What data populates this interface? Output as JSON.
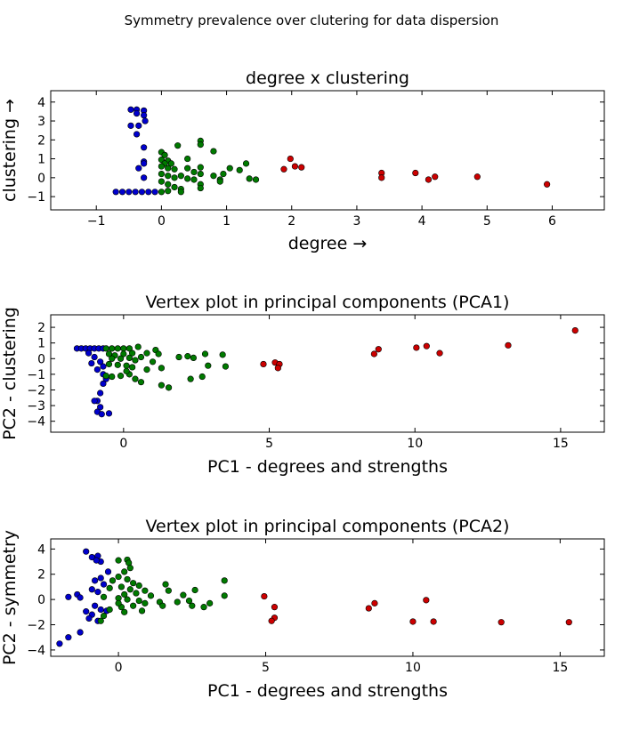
{
  "figure": {
    "suptitle": "Symmetry prevalence over clutering for data dispersion"
  },
  "colors": {
    "cluster_blue": "#0000cc",
    "cluster_green": "#007a00",
    "cluster_red": "#cc0000"
  },
  "chart_data": [
    {
      "type": "scatter",
      "title": "degree x clustering",
      "xlabel": "degree  →",
      "ylabel": "clustering  →",
      "xlim": [
        -1.7,
        6.8
      ],
      "ylim": [
        -1.7,
        4.6
      ],
      "xticks": [
        -1,
        0,
        1,
        2,
        3,
        4,
        5,
        6
      ],
      "yticks": [
        -1,
        0,
        1,
        2,
        3,
        4
      ],
      "series": [
        {
          "color": "blue",
          "points": [
            [
              -0.47,
              3.6
            ],
            [
              -0.38,
              3.6
            ],
            [
              -0.27,
              3.55
            ],
            [
              -0.38,
              3.4
            ],
            [
              -0.27,
              3.3
            ],
            [
              -0.25,
              3.0
            ],
            [
              -0.47,
              2.75
            ],
            [
              -0.35,
              2.75
            ],
            [
              -0.38,
              2.3
            ],
            [
              -0.27,
              1.6
            ],
            [
              -0.27,
              0.85
            ],
            [
              -0.27,
              0.75
            ],
            [
              -0.35,
              0.5
            ],
            [
              -0.27,
              0.0
            ],
            [
              -0.7,
              -0.75
            ],
            [
              -0.6,
              -0.75
            ],
            [
              -0.5,
              -0.75
            ],
            [
              -0.4,
              -0.75
            ],
            [
              -0.3,
              -0.75
            ],
            [
              -0.2,
              -0.75
            ],
            [
              -0.1,
              -0.75
            ]
          ]
        },
        {
          "color": "green",
          "points": [
            [
              0.0,
              1.35
            ],
            [
              0.05,
              1.2
            ],
            [
              0.0,
              0.95
            ],
            [
              0.1,
              0.9
            ],
            [
              0.05,
              0.75
            ],
            [
              0.0,
              0.6
            ],
            [
              0.1,
              0.5
            ],
            [
              0.2,
              0.45
            ],
            [
              0.0,
              0.2
            ],
            [
              0.1,
              0.1
            ],
            [
              0.2,
              0.0
            ],
            [
              0.3,
              0.1
            ],
            [
              0.0,
              -0.2
            ],
            [
              0.1,
              -0.35
            ],
            [
              0.2,
              -0.5
            ],
            [
              0.3,
              -0.6
            ],
            [
              0.0,
              -0.75
            ],
            [
              0.1,
              -0.7
            ],
            [
              0.3,
              -0.75
            ],
            [
              0.25,
              1.7
            ],
            [
              0.4,
              1.0
            ],
            [
              0.4,
              0.5
            ],
            [
              0.5,
              0.3
            ],
            [
              0.4,
              -0.05
            ],
            [
              0.6,
              1.95
            ],
            [
              0.6,
              1.75
            ],
            [
              0.6,
              0.55
            ],
            [
              0.6,
              0.2
            ],
            [
              0.5,
              -0.1
            ],
            [
              0.6,
              -0.35
            ],
            [
              0.6,
              -0.55
            ],
            [
              0.8,
              1.4
            ],
            [
              0.8,
              0.1
            ],
            [
              0.9,
              -0.1
            ],
            [
              0.9,
              -0.2
            ],
            [
              0.95,
              0.2
            ],
            [
              1.05,
              0.5
            ],
            [
              1.3,
              0.75
            ],
            [
              1.2,
              0.4
            ],
            [
              1.35,
              -0.05
            ],
            [
              1.45,
              -0.1
            ],
            [
              0.15,
              0.75
            ]
          ]
        },
        {
          "color": "red",
          "points": [
            [
              1.98,
              1.0
            ],
            [
              2.05,
              0.6
            ],
            [
              1.88,
              0.45
            ],
            [
              2.15,
              0.55
            ],
            [
              3.38,
              0.25
            ],
            [
              3.38,
              0.0
            ],
            [
              3.9,
              0.25
            ],
            [
              4.1,
              -0.1
            ],
            [
              4.2,
              0.05
            ],
            [
              4.85,
              0.05
            ],
            [
              5.92,
              -0.35
            ]
          ]
        }
      ]
    },
    {
      "type": "scatter",
      "title": "Vertex plot in principal components (PCA1)",
      "xlabel": "PC1 - degrees and strengths",
      "ylabel": "PC2 - clustering",
      "xlim": [
        -2.5,
        16.5
      ],
      "ylim": [
        -4.7,
        2.8
      ],
      "xticks": [
        0,
        5,
        10,
        15
      ],
      "yticks": [
        -4,
        -3,
        -2,
        -1,
        0,
        1,
        2
      ],
      "series": [
        {
          "color": "blue",
          "points": [
            [
              -1.6,
              0.65
            ],
            [
              -1.45,
              0.65
            ],
            [
              -1.3,
              0.65
            ],
            [
              -1.15,
              0.65
            ],
            [
              -1.0,
              0.65
            ],
            [
              -0.85,
              0.65
            ],
            [
              -0.7,
              0.65
            ],
            [
              -1.2,
              0.35
            ],
            [
              -1.0,
              0.1
            ],
            [
              -0.8,
              -0.2
            ],
            [
              -0.7,
              -0.5
            ],
            [
              -1.1,
              -0.3
            ],
            [
              -0.9,
              -0.7
            ],
            [
              -0.7,
              -1.0
            ],
            [
              -0.6,
              -1.3
            ],
            [
              -0.7,
              -1.6
            ],
            [
              -0.8,
              -2.2
            ],
            [
              -0.9,
              -2.7
            ],
            [
              -1.0,
              -2.7
            ],
            [
              -0.8,
              -3.1
            ],
            [
              -0.9,
              -3.4
            ],
            [
              -0.75,
              -3.55
            ],
            [
              -0.5,
              -3.5
            ]
          ]
        },
        {
          "color": "green",
          "points": [
            [
              -0.6,
              0.65
            ],
            [
              -0.4,
              0.65
            ],
            [
              -0.2,
              0.65
            ],
            [
              0.0,
              0.65
            ],
            [
              0.2,
              0.65
            ],
            [
              0.5,
              0.75
            ],
            [
              -0.5,
              0.3
            ],
            [
              -0.3,
              0.2
            ],
            [
              0.0,
              0.3
            ],
            [
              0.3,
              0.35
            ],
            [
              -0.4,
              0.0
            ],
            [
              -0.1,
              0.0
            ],
            [
              0.2,
              0.05
            ],
            [
              0.4,
              -0.1
            ],
            [
              -0.5,
              -0.35
            ],
            [
              -0.2,
              -0.4
            ],
            [
              0.1,
              -0.45
            ],
            [
              0.3,
              -0.55
            ],
            [
              -0.6,
              -1.1
            ],
            [
              -0.4,
              -1.15
            ],
            [
              -0.1,
              -1.1
            ],
            [
              0.2,
              -1.0
            ],
            [
              0.4,
              -1.3
            ],
            [
              0.6,
              0.1
            ],
            [
              0.8,
              0.35
            ],
            [
              1.1,
              0.55
            ],
            [
              1.2,
              0.3
            ],
            [
              1.0,
              -0.2
            ],
            [
              0.8,
              -0.7
            ],
            [
              1.3,
              -0.6
            ],
            [
              1.3,
              -1.7
            ],
            [
              1.55,
              -1.85
            ],
            [
              1.9,
              0.1
            ],
            [
              2.2,
              0.15
            ],
            [
              2.4,
              0.05
            ],
            [
              2.3,
              -1.3
            ],
            [
              2.7,
              -1.15
            ],
            [
              2.8,
              0.3
            ],
            [
              2.9,
              -0.45
            ],
            [
              3.4,
              0.25
            ],
            [
              3.5,
              -0.5
            ],
            [
              0.1,
              -0.8
            ],
            [
              0.6,
              -1.5
            ]
          ]
        },
        {
          "color": "red",
          "points": [
            [
              4.8,
              -0.35
            ],
            [
              5.2,
              -0.25
            ],
            [
              5.35,
              -0.35
            ],
            [
              5.3,
              -0.6
            ],
            [
              8.6,
              0.3
            ],
            [
              8.75,
              0.6
            ],
            [
              10.05,
              0.7
            ],
            [
              10.4,
              0.8
            ],
            [
              10.85,
              0.35
            ],
            [
              13.2,
              0.85
            ],
            [
              15.5,
              1.8
            ]
          ]
        }
      ]
    },
    {
      "type": "scatter",
      "title": "Vertex plot in principal components (PCA2)",
      "xlabel": "PC1 - degrees and strengths",
      "ylabel": "PC2 - symmetry",
      "xlim": [
        -2.3,
        16.5
      ],
      "ylim": [
        -4.5,
        4.8
      ],
      "xticks": [
        0,
        5,
        10,
        15
      ],
      "yticks": [
        -4,
        -2,
        0,
        2,
        4
      ],
      "series": [
        {
          "color": "blue",
          "points": [
            [
              -1.1,
              3.8
            ],
            [
              -0.9,
              3.35
            ],
            [
              -0.7,
              3.45
            ],
            [
              -0.6,
              3.0
            ],
            [
              -0.75,
              3.1
            ],
            [
              -0.35,
              2.2
            ],
            [
              -0.6,
              1.7
            ],
            [
              -0.8,
              1.5
            ],
            [
              -0.5,
              1.2
            ],
            [
              -0.9,
              0.8
            ],
            [
              -0.7,
              0.6
            ],
            [
              -1.4,
              0.4
            ],
            [
              -1.7,
              0.2
            ],
            [
              -1.3,
              0.15
            ],
            [
              -0.8,
              -0.5
            ],
            [
              -0.6,
              -0.8
            ],
            [
              -0.9,
              -1.2
            ],
            [
              -1.0,
              -1.5
            ],
            [
              -0.7,
              -1.7
            ],
            [
              -1.3,
              -2.6
            ],
            [
              -1.7,
              -3.0
            ],
            [
              -2.0,
              -3.5
            ],
            [
              -0.4,
              -0.9
            ],
            [
              -1.1,
              -0.95
            ]
          ]
        },
        {
          "color": "green",
          "points": [
            [
              0.0,
              3.1
            ],
            [
              0.3,
              3.15
            ],
            [
              0.35,
              2.9
            ],
            [
              0.4,
              2.5
            ],
            [
              0.2,
              2.2
            ],
            [
              0.0,
              1.8
            ],
            [
              0.3,
              1.6
            ],
            [
              -0.2,
              1.5
            ],
            [
              0.5,
              1.3
            ],
            [
              0.7,
              1.1
            ],
            [
              0.1,
              1.0
            ],
            [
              -0.3,
              0.9
            ],
            [
              0.4,
              0.8
            ],
            [
              0.9,
              0.7
            ],
            [
              0.6,
              0.5
            ],
            [
              0.2,
              0.4
            ],
            [
              -0.5,
              0.2
            ],
            [
              0.0,
              0.1
            ],
            [
              0.3,
              0.0
            ],
            [
              0.7,
              -0.1
            ],
            [
              0.9,
              -0.3
            ],
            [
              0.5,
              -0.5
            ],
            [
              0.1,
              -0.6
            ],
            [
              -0.3,
              -0.8
            ],
            [
              0.2,
              -1.0
            ],
            [
              -0.5,
              -1.3
            ],
            [
              -0.6,
              -1.7
            ],
            [
              1.1,
              0.3
            ],
            [
              1.4,
              -0.2
            ],
            [
              1.5,
              -0.5
            ],
            [
              1.6,
              1.2
            ],
            [
              1.7,
              0.7
            ],
            [
              2.0,
              -0.2
            ],
            [
              2.2,
              0.35
            ],
            [
              2.4,
              -0.1
            ],
            [
              2.6,
              0.75
            ],
            [
              2.5,
              -0.5
            ],
            [
              2.9,
              -0.6
            ],
            [
              3.1,
              -0.3
            ],
            [
              3.6,
              1.5
            ],
            [
              3.6,
              0.3
            ],
            [
              0.8,
              -0.9
            ],
            [
              0.0,
              -0.3
            ]
          ]
        },
        {
          "color": "red",
          "points": [
            [
              4.95,
              0.25
            ],
            [
              5.3,
              -0.6
            ],
            [
              5.3,
              -1.45
            ],
            [
              5.2,
              -1.7
            ],
            [
              8.5,
              -0.7
            ],
            [
              8.7,
              -0.3
            ],
            [
              10.0,
              -1.75
            ],
            [
              10.45,
              -0.05
            ],
            [
              10.7,
              -1.75
            ],
            [
              13.0,
              -1.8
            ],
            [
              15.3,
              -1.8
            ]
          ]
        }
      ]
    }
  ]
}
